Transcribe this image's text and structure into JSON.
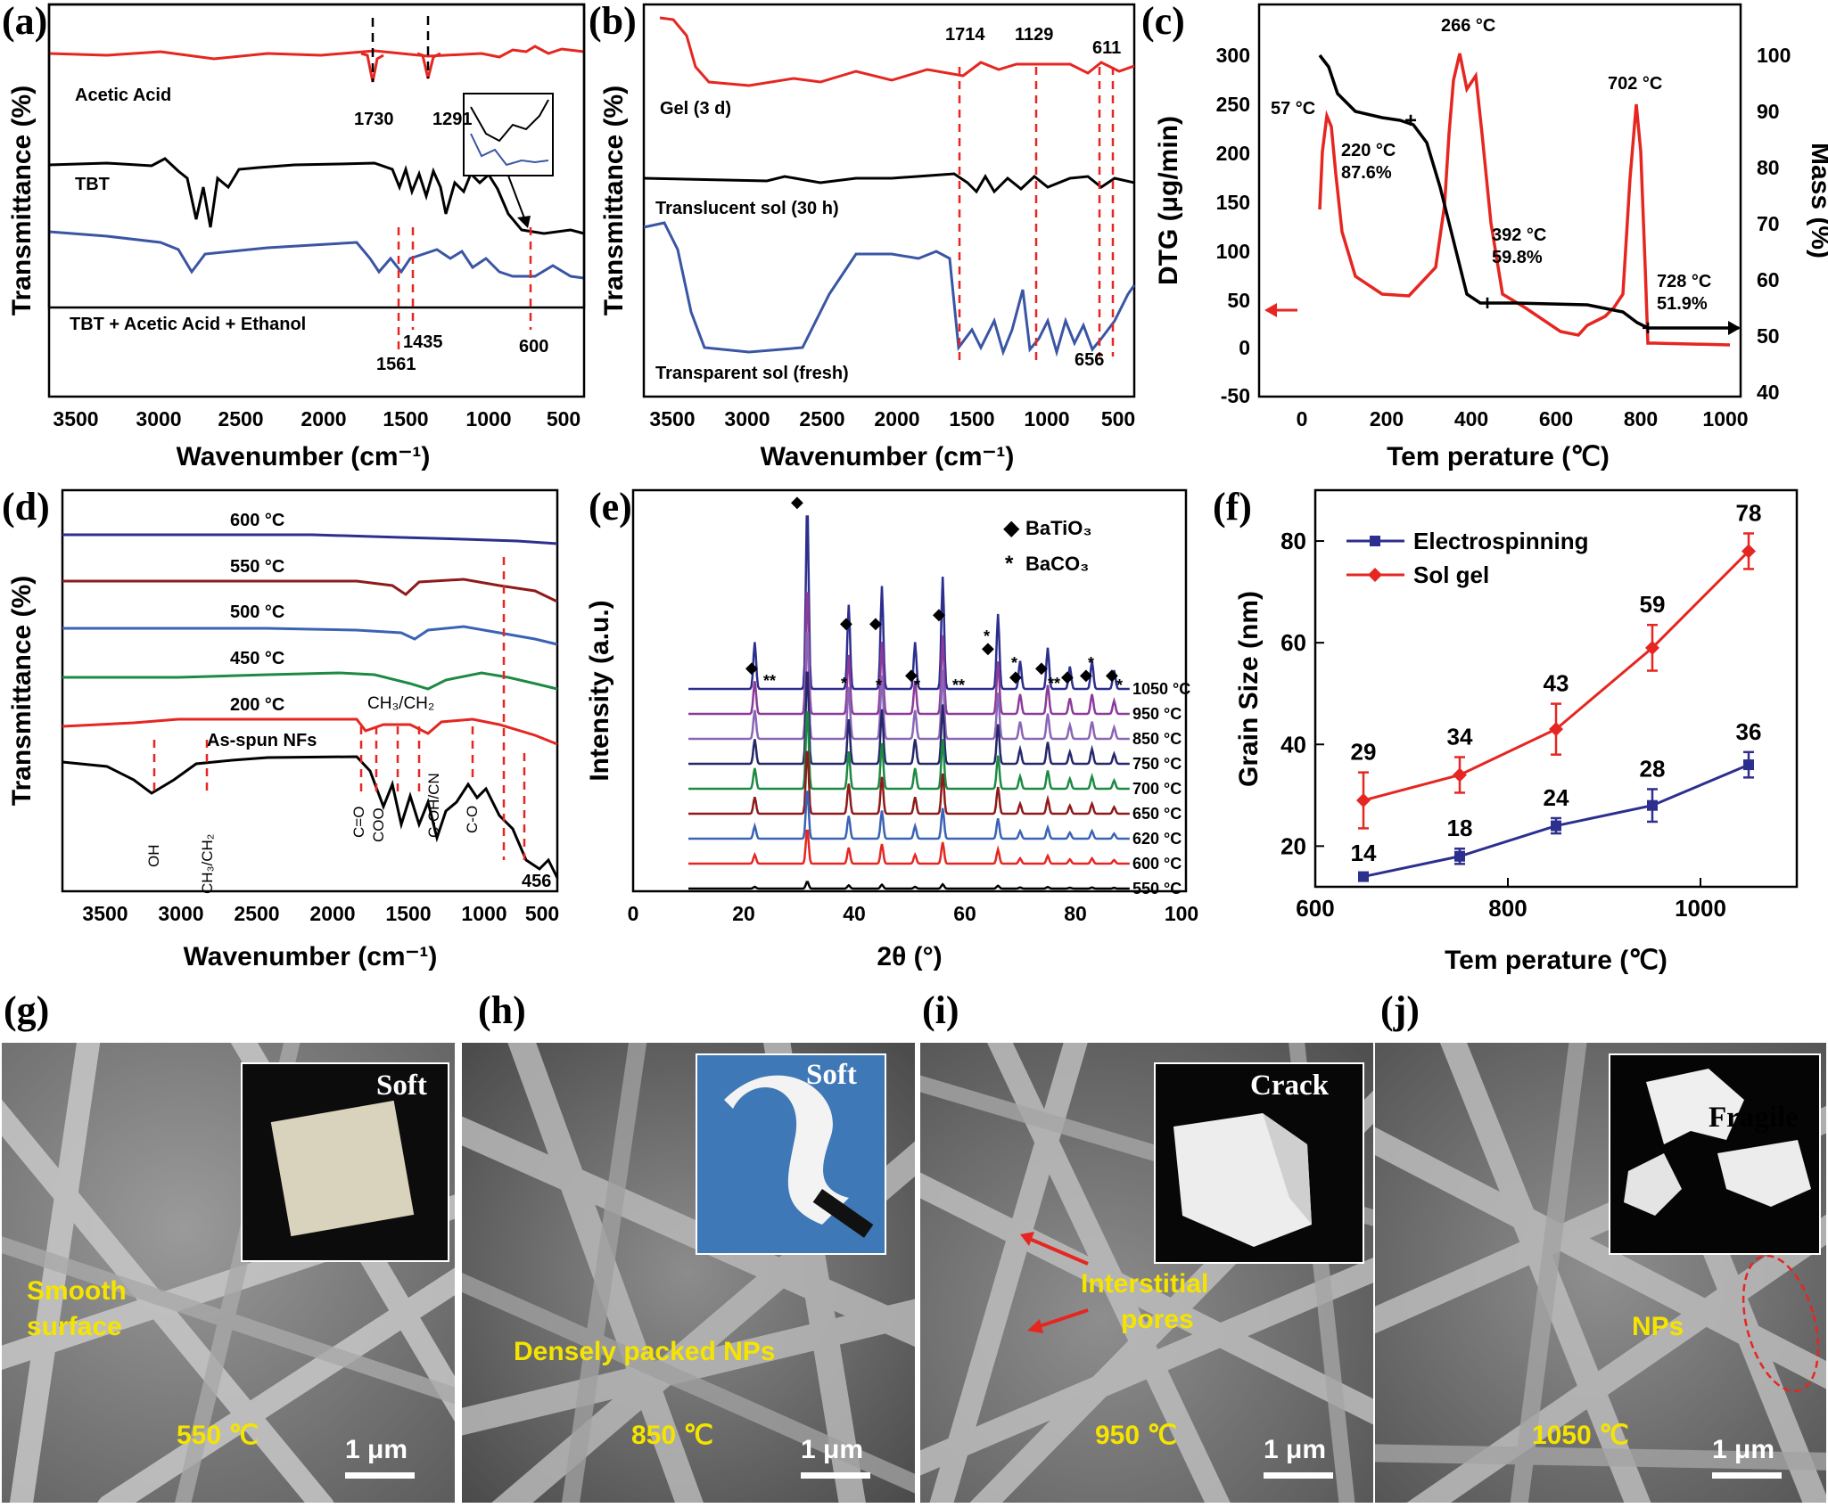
{
  "panels": {
    "a": {
      "label": "(a)",
      "xlabel": "Wavenumber (cm⁻¹)",
      "ylabel": "Transmittance (%)",
      "xticks": [
        "3500",
        "3000",
        "2500",
        "2000",
        "1500",
        "1000",
        "500"
      ],
      "series": [
        "Acetic Acid",
        "TBT",
        "TBT + Acetic Acid + Ethanol"
      ],
      "peaks": [
        "1730",
        "1291",
        "1561",
        "1435",
        "600"
      ],
      "colors": [
        "#e52621",
        "#000000",
        "#3a55a4"
      ]
    },
    "b": {
      "label": "(b)",
      "xlabel": "Wavenumber (cm⁻¹)",
      "ylabel": "Transmittance (%)",
      "xticks": [
        "3500",
        "3000",
        "2500",
        "2000",
        "1500",
        "1000",
        "500"
      ],
      "series": [
        "Gel (3 d)",
        "Translucent sol (30 h)",
        "Transparent sol (fresh)"
      ],
      "peaks": [
        "1714",
        "1129",
        "611",
        "656"
      ]
    },
    "c": {
      "label": "(c)",
      "xlabel": "Tem perature (℃)",
      "ylabel_left": "DTG (μg/min)",
      "ylabel_right": "Mass (%)",
      "xticks": [
        "0",
        "200",
        "400",
        "600",
        "800",
        "1000"
      ],
      "yticks_left": [
        "300",
        "250",
        "200",
        "150",
        "100",
        "50",
        "0",
        "-50"
      ],
      "yticks_right": [
        "100",
        "90",
        "80",
        "70",
        "60",
        "50",
        "40"
      ],
      "annotations": [
        "57 °C",
        "266 °C",
        "702 °C",
        "220 °C",
        "87.6%",
        "392 °C",
        "59.8%",
        "728 °C",
        "51.9%"
      ]
    },
    "d": {
      "label": "(d)",
      "xlabel": "Wavenumber (cm⁻¹)",
      "ylabel": "Transmittance (%)",
      "xticks": [
        "3500",
        "3000",
        "2500",
        "2000",
        "1500",
        "1000",
        "500"
      ],
      "series": [
        "600 °C",
        "550 °C",
        "500 °C",
        "450 °C",
        "200 °C",
        "As-spun NFs"
      ],
      "bands": [
        "CH₃/CH₂",
        "OH",
        "CH₃/CH₂",
        "C=O",
        "COO",
        "C-OH/CN",
        "C-O",
        "456"
      ]
    },
    "e": {
      "label": "(e)",
      "xlabel": "2θ (°)",
      "ylabel": "Intensity (a.u.)",
      "xticks": [
        "0",
        "20",
        "40",
        "60",
        "80",
        "100"
      ],
      "legend": [
        "BaTiO₃",
        "BaCO₃"
      ],
      "temps": [
        "1050 °C",
        "950 °C",
        "850 °C",
        "750 °C",
        "700 °C",
        "650 °C",
        "620 °C",
        "600 °C",
        "550 °C"
      ],
      "colors": [
        "#2d2f8e",
        "#8c3b9a",
        "#8a66b6",
        "#27276b",
        "#1d8a43",
        "#8e1b1b",
        "#3a62b5",
        "#e52621",
        "#000000"
      ]
    },
    "f": {
      "label": "(f)",
      "xlabel": "Tem perature (℃)",
      "ylabel": "Grain Size (nm)"
    },
    "g": {
      "label": "(g)",
      "inset_word": "Soft",
      "text1": "Smooth",
      "text2": "surface",
      "temp": "550 ℃",
      "scale": "1 μm"
    },
    "h": {
      "label": "(h)",
      "inset_word": "Soft",
      "text1": "Densely packed NPs",
      "temp": "850 ℃",
      "scale": "1 μm"
    },
    "i": {
      "label": "(i)",
      "inset_word": "Crack",
      "text1": "Interstitial",
      "text2": "pores",
      "temp": "950 ℃",
      "scale": "1 μm"
    },
    "j": {
      "label": "(j)",
      "inset_word": "Fragile",
      "text1": "NPs",
      "temp": "1050 ℃",
      "scale": "1 μm"
    }
  },
  "chart_data": {
    "type": "line",
    "title": "",
    "xlabel": "Tem perature (℃)",
    "ylabel": "Grain Size (nm)",
    "x": [
      650,
      750,
      850,
      950,
      1050
    ],
    "xlim": [
      600,
      1100
    ],
    "ylim": [
      12,
      90
    ],
    "xticks": [
      600,
      800,
      1000
    ],
    "yticks": [
      20,
      40,
      60,
      80
    ],
    "legend_position": "top-left",
    "series": [
      {
        "name": "Electrospinning",
        "values": [
          14,
          18,
          24,
          28,
          36
        ],
        "errors": [
          0.6,
          1.5,
          1.5,
          3.2,
          2.5
        ],
        "color": "#2d2f8e",
        "marker": "square"
      },
      {
        "name": "Sol gel",
        "values": [
          29,
          34,
          43,
          59,
          78
        ],
        "errors": [
          5.5,
          3.5,
          5,
          4.5,
          3.5
        ],
        "color": "#e52621",
        "marker": "diamond"
      }
    ]
  }
}
